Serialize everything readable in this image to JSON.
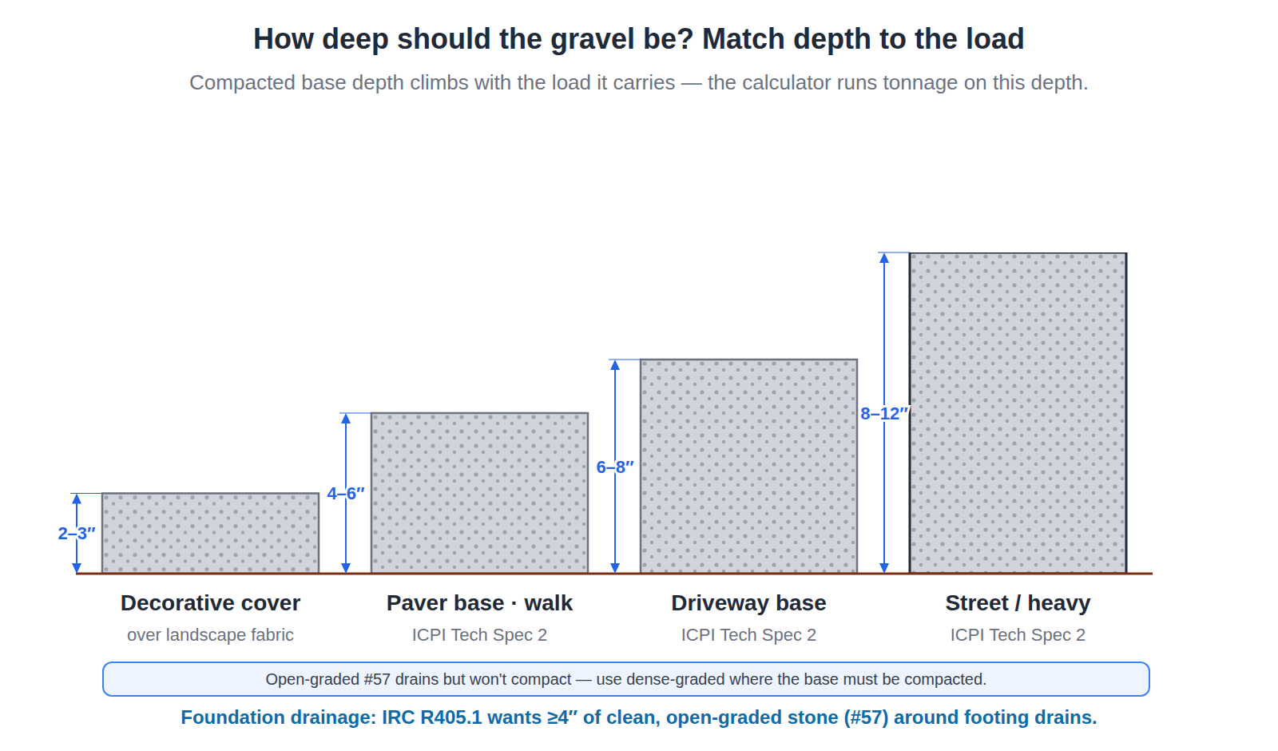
{
  "chart_data": {
    "type": "bar",
    "title": "How deep should the gravel be? Match depth to the load",
    "subtitle": "Compacted base depth climbs with the load it carries — the calculator runs tonnage on this depth.",
    "categories": [
      "Decorative cover",
      "Paver base · walk",
      "Driveway base",
      "Street / heavy"
    ],
    "sublabels": [
      "over landscape fabric",
      "ICPI Tech Spec 2",
      "ICPI Tech Spec 2",
      "ICPI Tech Spec 2"
    ],
    "values": [
      3,
      6,
      8,
      12
    ],
    "value_labels": [
      "2–3″",
      "4–6″",
      "6–8″",
      "8–12″"
    ],
    "data_labels": true,
    "ylim": [
      0,
      12
    ],
    "tick_labels": "x",
    "grid": false,
    "color": "#d1d5db",
    "annotations": [
      "Open-graded #57 drains but won't compact — use dense-graded where the base must be compacted.",
      "Foundation drainage: IRC R405.1 wants ≥4″ of clean, open-graded stone (#57) around footing drains."
    ]
  }
}
